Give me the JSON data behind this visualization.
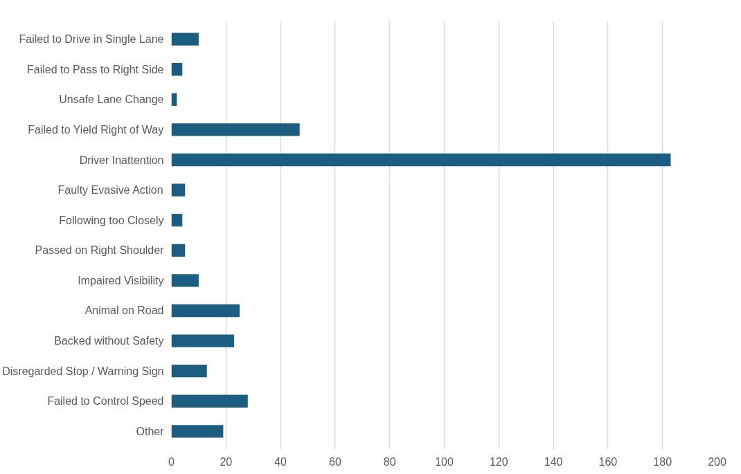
{
  "chart_data": {
    "type": "bar",
    "orientation": "horizontal",
    "categories": [
      "Failed to Drive in Single Lane",
      "Failed to Pass to Right Side",
      "Unsafe Lane Change",
      "Failed to Yield Right of Way",
      "Driver Inattention",
      "Faulty Evasive Action",
      "Following too Closely",
      "Passed on Right Shoulder",
      "Impaired Visibility",
      "Animal on Road",
      "Backed without Safety",
      "Disregarded Stop / Warning Sign",
      "Failed to Control Speed",
      "Other"
    ],
    "values": [
      10,
      4,
      2,
      47,
      183,
      5,
      4,
      5,
      10,
      25,
      23,
      13,
      28,
      19
    ],
    "color": "#1b5e82",
    "xlim": [
      0,
      200
    ],
    "xticks": [
      0,
      20,
      40,
      60,
      80,
      100,
      120,
      140,
      160,
      180,
      200
    ],
    "grid": "x"
  }
}
